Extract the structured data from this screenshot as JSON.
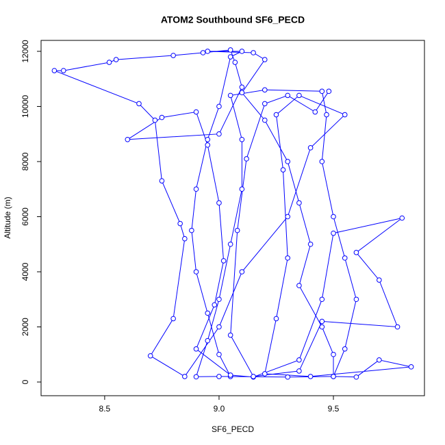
{
  "chart_data": {
    "type": "line-points",
    "title": "ATOM2 Southbound SF6_PECD",
    "xlabel": "SF6_PECD",
    "ylabel": "Altitude (m)",
    "color": "#0000ff",
    "xlim": [
      8.222,
      9.898
    ],
    "ylim": [
      -497,
      12397
    ],
    "xticks": [
      {
        "value": 8.5,
        "label": "8.5"
      },
      {
        "value": 9.0,
        "label": "9.0"
      },
      {
        "value": 9.5,
        "label": "9.5"
      }
    ],
    "yticks": [
      0,
      2000,
      4000,
      6000,
      8000,
      10000,
      12000
    ],
    "x": [
      9.05,
      9.0,
      8.95,
      8.9,
      8.88,
      8.9,
      8.95,
      9.0,
      9.05,
      9.1,
      8.95,
      9.15,
      9.2,
      9.1,
      9.2,
      9.3,
      9.35,
      9.4,
      9.35,
      9.45,
      9.5,
      9.5,
      9.3,
      9.0,
      8.9,
      8.95,
      9.0,
      9.05,
      9.1,
      9.1,
      9.05,
      9.2,
      9.45,
      9.47,
      9.45,
      9.5,
      9.55,
      9.6,
      9.55,
      9.5,
      9.6,
      9.7,
      9.84,
      9.4,
      9.2,
      9.25,
      9.3,
      9.28,
      9.25,
      9.35,
      9.55,
      9.4,
      9.3,
      9.1,
      9.0,
      8.85,
      8.7,
      8.8,
      8.85,
      8.83,
      8.75,
      8.72,
      8.65,
      8.28,
      8.32,
      8.52,
      8.55,
      8.8,
      8.93,
      9.05,
      9.07,
      9.1,
      9.0,
      8.6,
      8.75,
      8.9,
      8.95,
      9.0,
      9.02,
      8.98,
      8.9,
      9.05,
      9.15,
      9.35,
      9.45,
      9.5,
      9.8,
      9.6,
      9.7,
      9.78,
      9.45,
      9.35,
      9.15,
      9.05,
      9.08,
      9.12,
      9.2,
      9.3,
      9.42,
      9.48
    ],
    "values": [
      200,
      1000,
      2500,
      4000,
      5500,
      7000,
      8800,
      10000,
      11800,
      12000,
      12000,
      11950,
      11700,
      10500,
      9500,
      8000,
      6500,
      5000,
      3500,
      2000,
      1000,
      200,
      180,
      200,
      190,
      1500,
      3000,
      5000,
      7000,
      8800,
      10400,
      10600,
      10550,
      9700,
      8000,
      6000,
      4500,
      3000,
      1200,
      200,
      180,
      800,
      550,
      200,
      300,
      2300,
      4500,
      7700,
      9700,
      10400,
      9700,
      8500,
      6000,
      4000,
      2000,
      200,
      950,
      2300,
      5200,
      5750,
      7300,
      9500,
      10100,
      11300,
      11300,
      11600,
      11700,
      11850,
      11950,
      12050,
      11600,
      10700,
      9000,
      8800,
      9600,
      9800,
      8600,
      6500,
      4400,
      2800,
      1200,
      250,
      180,
      800,
      3000,
      5400,
      5950,
      4700,
      3700,
      2000,
      2200,
      400,
      200,
      1700,
      5500,
      8100,
      10100,
      10400,
      9800,
      10550
    ]
  }
}
